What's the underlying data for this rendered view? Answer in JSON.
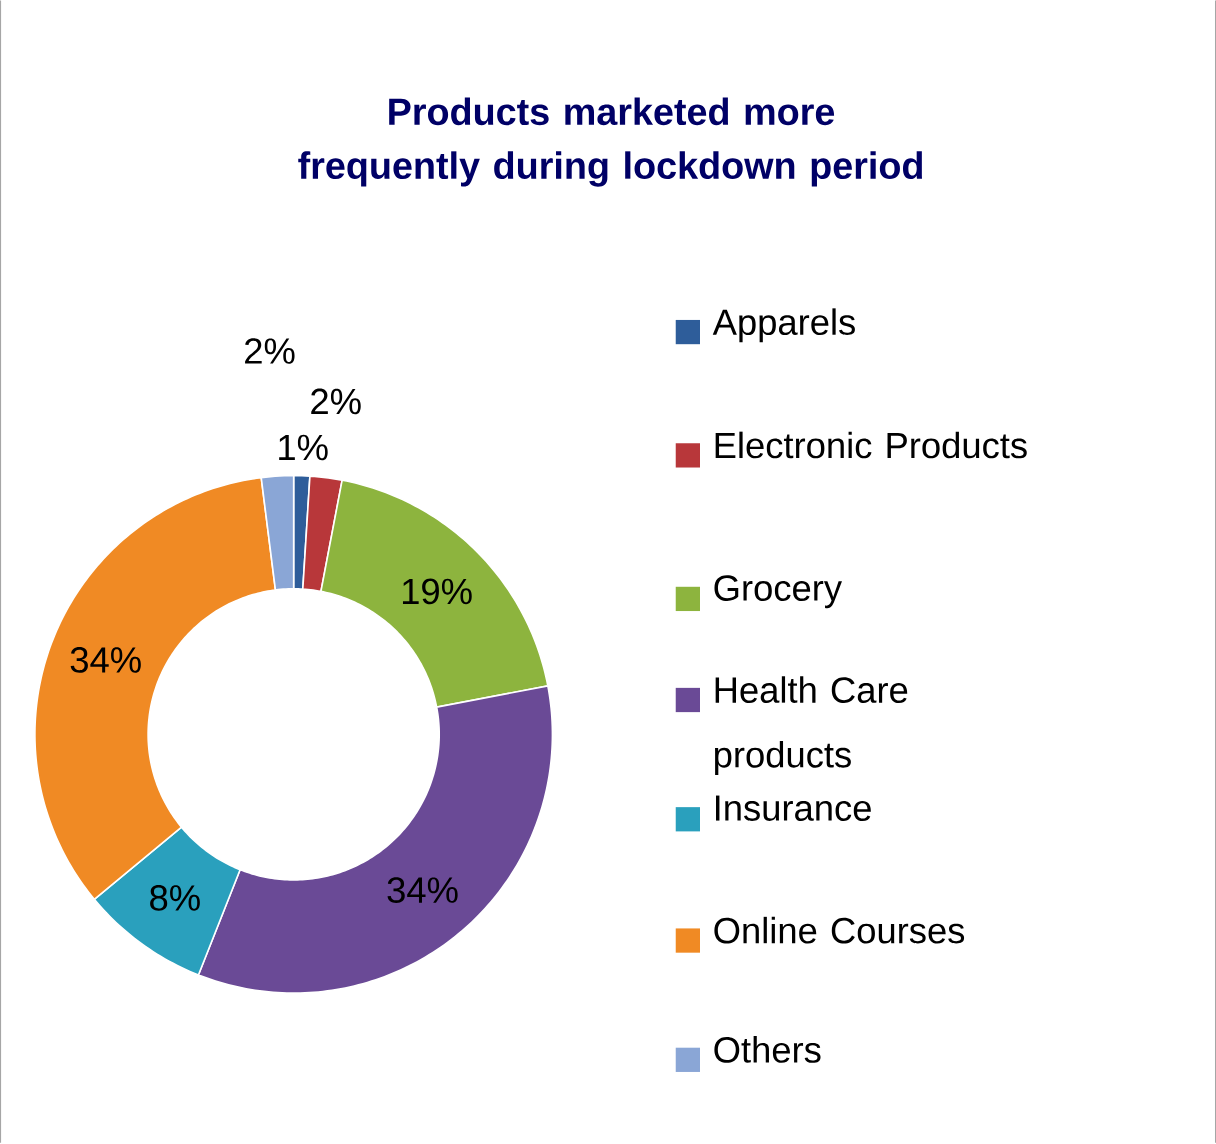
{
  "chart_data": {
    "type": "donut",
    "title": "Products marketed more frequently during lockdown period",
    "categories": [
      "Apparels",
      "Electronic Products",
      "Grocery",
      "Health Care products",
      "Insurance",
      "Online Courses",
      "Others"
    ],
    "values": [
      1,
      2,
      19,
      34,
      8,
      34,
      2
    ],
    "colors": [
      "#2e5d9a",
      "#b8373a",
      "#8db43e",
      "#6a4a96",
      "#2aa0bd",
      "#f08a24",
      "#8aa6d6"
    ],
    "value_labels": [
      "1%",
      "2%",
      "19%",
      "34%",
      "8%",
      "34%",
      "2%"
    ],
    "legend": "right"
  }
}
